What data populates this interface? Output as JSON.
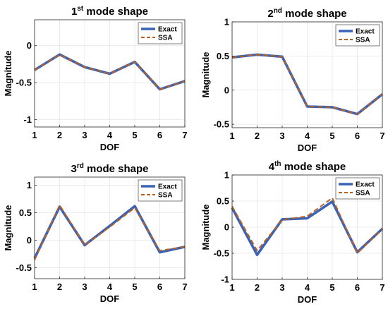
{
  "chart_data": [
    {
      "type": "line",
      "title_prefix": "1",
      "title_sup": "st",
      "title_suffix": " mode shape",
      "xlabel": "DOF",
      "ylabel": "Magnitude",
      "x": [
        1,
        2,
        3,
        4,
        5,
        6,
        7
      ],
      "xlim": [
        1,
        7
      ],
      "ylim": [
        -1.1,
        0.35
      ],
      "yticks": [
        -1,
        -0.5,
        0
      ],
      "ytick_labels": [
        "-1",
        "-0.5",
        "0"
      ],
      "grid": true,
      "legend_position": "top-right",
      "series": [
        {
          "name": "Exact",
          "style": "solid",
          "color": "#3a63b8",
          "values": [
            -0.33,
            -0.12,
            -0.29,
            -0.38,
            -0.22,
            -0.59,
            -0.48
          ]
        },
        {
          "name": "SSA",
          "style": "dashed",
          "color": "#b8621f",
          "values": [
            -0.33,
            -0.12,
            -0.29,
            -0.38,
            -0.22,
            -0.59,
            -0.48
          ]
        }
      ]
    },
    {
      "type": "line",
      "title_prefix": "2",
      "title_sup": "nd",
      "title_suffix": " mode shape",
      "xlabel": "DOF",
      "ylabel": "Magnitude",
      "x": [
        1,
        2,
        3,
        4,
        5,
        6,
        7
      ],
      "xlim": [
        1,
        7
      ],
      "ylim": [
        -0.55,
        1.0
      ],
      "yticks": [
        -0.5,
        0,
        0.5,
        1
      ],
      "ytick_labels": [
        "-0.5",
        "0",
        "0.5",
        "1"
      ],
      "grid": true,
      "legend_position": "top-right",
      "series": [
        {
          "name": "Exact",
          "style": "solid",
          "color": "#3a63b8",
          "values": [
            0.48,
            0.52,
            0.49,
            -0.24,
            -0.25,
            -0.35,
            -0.06
          ]
        },
        {
          "name": "SSA",
          "style": "dashed",
          "color": "#b8621f",
          "values": [
            0.48,
            0.52,
            0.49,
            -0.24,
            -0.25,
            -0.35,
            -0.06
          ]
        }
      ]
    },
    {
      "type": "line",
      "title_prefix": "3",
      "title_sup": "rd",
      "title_suffix": " mode shape",
      "xlabel": "DOF",
      "ylabel": "Magnitude",
      "x": [
        1,
        2,
        3,
        4,
        5,
        6,
        7
      ],
      "xlim": [
        1,
        7
      ],
      "ylim": [
        -0.7,
        1.15
      ],
      "yticks": [
        -0.5,
        0,
        0.5,
        1
      ],
      "ytick_labels": [
        "-0.5",
        "0",
        "0.5",
        "1"
      ],
      "grid": true,
      "legend_position": "top-right",
      "series": [
        {
          "name": "Exact",
          "style": "solid",
          "color": "#3a63b8",
          "values": [
            -0.33,
            0.61,
            -0.09,
            0.26,
            0.62,
            -0.22,
            -0.12
          ]
        },
        {
          "name": "SSA",
          "style": "dashed",
          "color": "#b8621f",
          "values": [
            -0.36,
            0.64,
            -0.09,
            0.24,
            0.59,
            -0.19,
            -0.12
          ]
        }
      ]
    },
    {
      "type": "line",
      "title_prefix": "4",
      "title_sup": "th",
      "title_suffix": " mode shape",
      "xlabel": "DOF",
      "ylabel": "Magnitude",
      "x": [
        1,
        2,
        3,
        4,
        5,
        6,
        7
      ],
      "xlim": [
        1,
        7
      ],
      "ylim": [
        -1.0,
        1.0
      ],
      "yticks": [
        -1,
        -0.5,
        0,
        0.5,
        1
      ],
      "ytick_labels": [
        "-1",
        "-0.5",
        "0",
        "0.5",
        "1"
      ],
      "grid": true,
      "legend_position": "top-right",
      "series": [
        {
          "name": "Exact",
          "style": "solid",
          "color": "#3a63b8",
          "values": [
            0.37,
            -0.53,
            0.15,
            0.17,
            0.49,
            -0.48,
            -0.03
          ]
        },
        {
          "name": "SSA",
          "style": "dashed",
          "color": "#b8621f",
          "values": [
            0.4,
            -0.45,
            0.14,
            0.21,
            0.56,
            -0.5,
            -0.03
          ]
        }
      ]
    }
  ]
}
